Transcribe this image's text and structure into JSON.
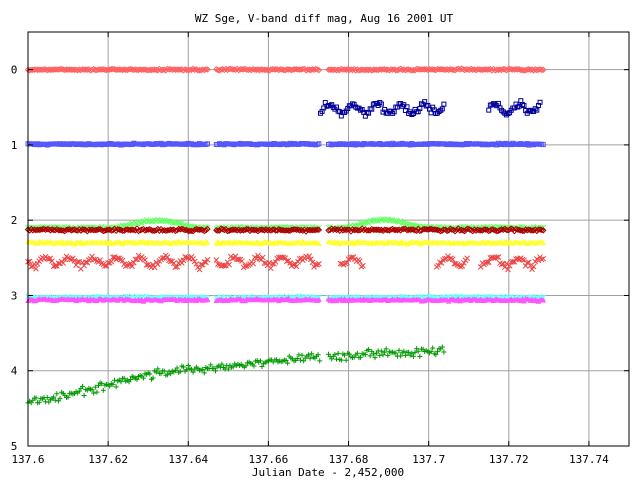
{
  "chart_data": {
    "type": "scatter",
    "title": "WZ Sge, V-band diff mag, Aug 16 2001 UT",
    "xlabel": "Julian Date - 2,452,000",
    "ylabel": "",
    "xlim": [
      137.6,
      137.75
    ],
    "ylim": [
      5,
      -0.5
    ],
    "y_inverted": true,
    "grid": true,
    "xticks": [
      137.6,
      137.62,
      137.64,
      137.66,
      137.68,
      137.7,
      137.72,
      137.74
    ],
    "xtick_labels": [
      "137.6",
      "137.62",
      "137.64",
      "137.66",
      "137.68",
      "137.7",
      "137.72",
      "137.74"
    ],
    "yticks": [
      0,
      1,
      2,
      3,
      4,
      5
    ],
    "ytick_labels": [
      "0",
      "1",
      "2",
      "3",
      "4",
      "5"
    ],
    "series": [
      {
        "color": "#ff6060",
        "marker": "diamond",
        "segments": [
          [
            137.6,
            137.645
          ],
          [
            137.647,
            137.673
          ],
          [
            137.675,
            137.729
          ]
        ],
        "base": 0.0,
        "wave_amp": 0.0,
        "noise": 0.012
      },
      {
        "color": "#000099",
        "marker": "square",
        "segments": [
          [
            137.673,
            137.704
          ],
          [
            137.715,
            137.728
          ]
        ],
        "base": 0.52,
        "wave_amp": 0.06,
        "noise": 0.06
      },
      {
        "color": "#5555ff",
        "marker": "square",
        "segments": [
          [
            137.6,
            137.645
          ],
          [
            137.647,
            137.673
          ],
          [
            137.675,
            137.729
          ]
        ],
        "base": 0.99,
        "wave_amp": 0.0,
        "noise": 0.012
      },
      {
        "color": "#66ff66",
        "marker": "x",
        "segments": [
          [
            137.6,
            137.645
          ],
          [
            137.647,
            137.673
          ],
          [
            137.675,
            137.729
          ]
        ],
        "base": 2.1,
        "wave_amp": 0.0,
        "noise": 0.02,
        "humps": [
          {
            "center": 137.632,
            "width": 0.012,
            "depth": 0.1
          },
          {
            "center": 137.689,
            "width": 0.012,
            "depth": 0.1
          }
        ]
      },
      {
        "color": "#aa0000",
        "marker": "diamond",
        "segments": [
          [
            137.6,
            137.645
          ],
          [
            137.647,
            137.673
          ],
          [
            137.675,
            137.729
          ]
        ],
        "base": 2.13,
        "wave_amp": 0.0,
        "noise": 0.02
      },
      {
        "color": "#ffff33",
        "marker": "triangle",
        "segments": [
          [
            137.6,
            137.645
          ],
          [
            137.647,
            137.673
          ],
          [
            137.675,
            137.729
          ]
        ],
        "base": 2.3,
        "wave_amp": 0.0,
        "noise": 0.02
      },
      {
        "color": "#ee4444",
        "marker": "x",
        "segments": [
          [
            137.6,
            137.645
          ],
          [
            137.647,
            137.673
          ],
          [
            137.678,
            137.684
          ],
          [
            137.702,
            137.71
          ],
          [
            137.713,
            137.729
          ]
        ],
        "base": 2.55,
        "wave_amp": 0.06,
        "noise": 0.05
      },
      {
        "color": "#66ffff",
        "marker": "x",
        "segments": [
          [
            137.6,
            137.645
          ],
          [
            137.647,
            137.673
          ],
          [
            137.675,
            137.729
          ]
        ],
        "base": 3.03,
        "wave_amp": 0.0,
        "noise": 0.02
      },
      {
        "color": "#ff55ff",
        "marker": "triangle",
        "segments": [
          [
            137.6,
            137.645
          ],
          [
            137.647,
            137.673
          ],
          [
            137.675,
            137.729
          ]
        ],
        "base": 3.06,
        "wave_amp": 0.0,
        "noise": 0.02
      },
      {
        "color": "#009900",
        "marker": "plus",
        "segments": [
          [
            137.6,
            137.673
          ],
          [
            137.675,
            137.704
          ]
        ],
        "trend": [
          [
            137.6,
            4.42
          ],
          [
            137.62,
            4.2
          ],
          [
            137.63,
            4.05
          ],
          [
            137.64,
            3.98
          ],
          [
            137.65,
            3.94
          ],
          [
            137.66,
            3.88
          ],
          [
            137.67,
            3.82
          ],
          [
            137.704,
            3.74
          ]
        ],
        "noise": 0.07
      }
    ]
  }
}
